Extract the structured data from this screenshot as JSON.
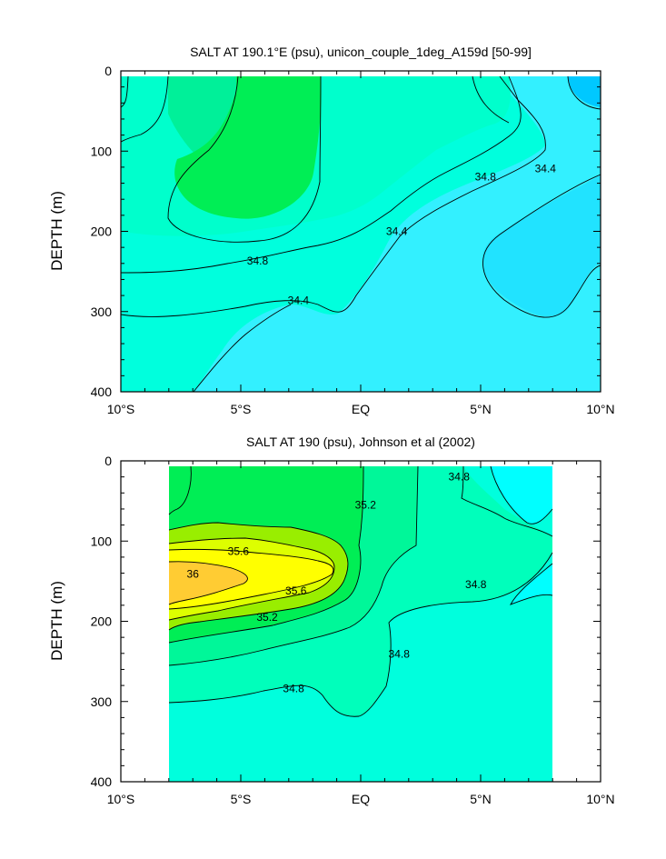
{
  "chart_data": [
    {
      "type": "contour",
      "title": "SALT AT 190.1°E (psu), unicon_couple_1deg_A159d [50-99]",
      "ylabel": "DEPTH (m)",
      "xlabel": "",
      "xlim": [
        -10,
        10
      ],
      "ylim": [
        400,
        0
      ],
      "x_ticks": [
        -10,
        -5,
        0,
        5,
        10
      ],
      "x_tick_labels": [
        "10°S",
        "5°S",
        "EQ",
        "5°N",
        "10°N"
      ],
      "y_ticks": [
        0,
        100,
        200,
        300,
        400
      ],
      "y_tick_labels": [
        "0",
        "100",
        "200",
        "300",
        "400"
      ],
      "data_extent": {
        "x": [
          -10,
          10
        ],
        "depth": [
          5,
          400
        ]
      },
      "contour_interval": 0.2,
      "contour_labels": [
        {
          "text": "34.8",
          "x": 5.2,
          "depth": 132
        },
        {
          "text": "34.8",
          "x": -4.3,
          "depth": 237
        },
        {
          "text": "34.4",
          "x": 7.7,
          "depth": 122
        },
        {
          "text": "34.4",
          "x": 1.5,
          "depth": 200
        },
        {
          "text": "34.4",
          "x": -2.6,
          "depth": 286
        }
      ]
    },
    {
      "type": "contour",
      "title": "SALT AT 190 (psu), Johnson et al (2002)",
      "ylabel": "DEPTH (m)",
      "xlabel": "",
      "xlim": [
        -10,
        10
      ],
      "ylim": [
        400,
        0
      ],
      "x_ticks": [
        -10,
        -5,
        0,
        5,
        10
      ],
      "x_tick_labels": [
        "10°S",
        "5°S",
        "EQ",
        "5°N",
        "10°N"
      ],
      "y_ticks": [
        0,
        100,
        200,
        300,
        400
      ],
      "y_tick_labels": [
        "0",
        "100",
        "200",
        "300",
        "400"
      ],
      "data_extent": {
        "x": [
          -8,
          8
        ],
        "depth": [
          5,
          400
        ]
      },
      "contour_interval": 0.2,
      "contour_labels": [
        {
          "text": "34.8",
          "x": 4.1,
          "depth": 20
        },
        {
          "text": "35.2",
          "x": 0.2,
          "depth": 55
        },
        {
          "text": "35.6",
          "x": -5.1,
          "depth": 113
        },
        {
          "text": "36",
          "x": -7.0,
          "depth": 141
        },
        {
          "text": "35.6",
          "x": -2.7,
          "depth": 162
        },
        {
          "text": "34.8",
          "x": 4.8,
          "depth": 154
        },
        {
          "text": "35.2",
          "x": -3.9,
          "depth": 195
        },
        {
          "text": "34.8",
          "x": 1.6,
          "depth": 241
        },
        {
          "text": "34.8",
          "x": -2.8,
          "depth": 284
        }
      ]
    }
  ]
}
